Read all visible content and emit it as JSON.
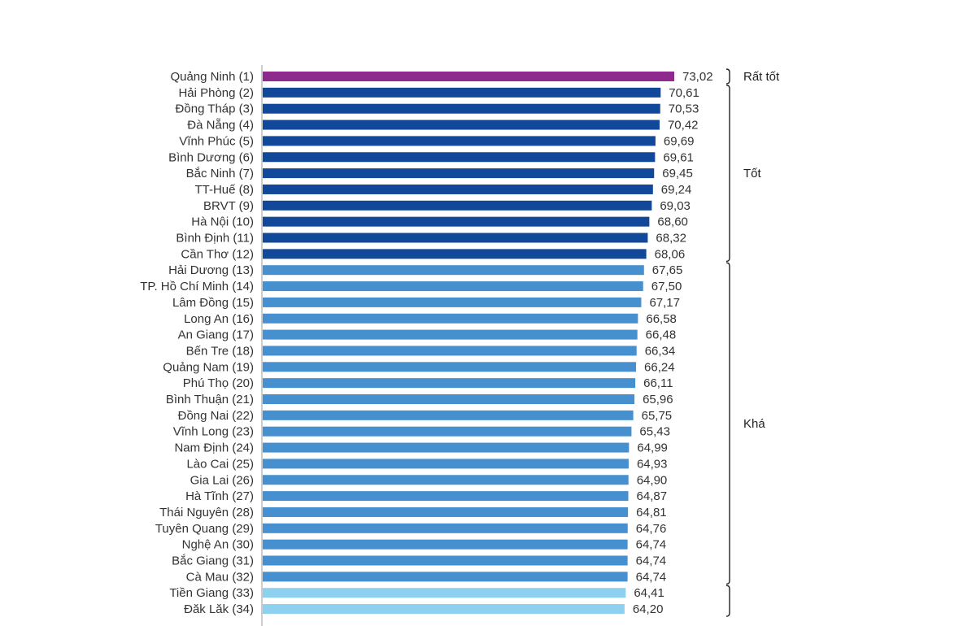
{
  "chart_data": {
    "type": "bar",
    "orientation": "horizontal",
    "title": "",
    "xlabel": "",
    "ylabel": "",
    "xlim": [
      0,
      73.02
    ],
    "grid": false,
    "legend": "none",
    "categories": [
      "Quảng Ninh (1)",
      "Hải Phòng (2)",
      "Đồng Tháp (3)",
      "Đà Nẵng (4)",
      "Vĩnh Phúc (5)",
      "Bình Dương (6)",
      "Bắc Ninh (7)",
      "TT-Huế (8)",
      "BRVT (9)",
      "Hà Nội (10)",
      "Bình Định (11)",
      "Cần Thơ (12)",
      "Hải Dương (13)",
      "TP. Hồ Chí Minh (14)",
      "Lâm Đồng (15)",
      "Long An (16)",
      "An Giang (17)",
      "Bến Tre (18)",
      "Quảng Nam (19)",
      "Phú Thọ (20)",
      "Bình Thuận (21)",
      "Đồng Nai (22)",
      "Vĩnh Long (23)",
      "Nam Định (24)",
      "Lào Cai (25)",
      "Gia Lai (26)",
      "Hà Tĩnh (27)",
      "Thái Nguyên (28)",
      "Tuyên Quang (29)",
      "Nghệ An (30)",
      "Bắc Giang (31)",
      "Cà Mau (32)",
      "Tiền Giang (33)",
      "Đăk Lăk (34)"
    ],
    "values": [
      73.02,
      70.61,
      70.53,
      70.42,
      69.69,
      69.61,
      69.45,
      69.24,
      69.03,
      68.6,
      68.32,
      68.06,
      67.65,
      67.5,
      67.17,
      66.58,
      66.48,
      66.34,
      66.24,
      66.11,
      65.96,
      65.75,
      65.43,
      64.99,
      64.93,
      64.9,
      64.87,
      64.81,
      64.76,
      64.74,
      64.74,
      64.74,
      64.41,
      64.2
    ],
    "value_labels": [
      "73,02",
      "70,61",
      "70,53",
      "70,42",
      "69,69",
      "69,61",
      "69,45",
      "69,24",
      "69,03",
      "68,60",
      "68,32",
      "68,06",
      "67,65",
      "67,50",
      "67,17",
      "66,58",
      "66,48",
      "66,34",
      "66,24",
      "66,11",
      "65,96",
      "65,75",
      "65,43",
      "64,99",
      "64,93",
      "64,90",
      "64,87",
      "64,81",
      "64,76",
      "64,74",
      "64,74",
      "64,74",
      "64,41",
      "64,20"
    ],
    "groups": [
      {
        "label": "Rất tốt",
        "from": 0,
        "to": 0,
        "color": "#8e2a8e"
      },
      {
        "label": "Tốt",
        "from": 1,
        "to": 11,
        "color": "#12489a"
      },
      {
        "label": "Khá",
        "from": 12,
        "to": 31,
        "color": "#4690d0"
      },
      {
        "label": "",
        "from": 32,
        "to": 33,
        "color": "#8dd0f0"
      }
    ]
  }
}
